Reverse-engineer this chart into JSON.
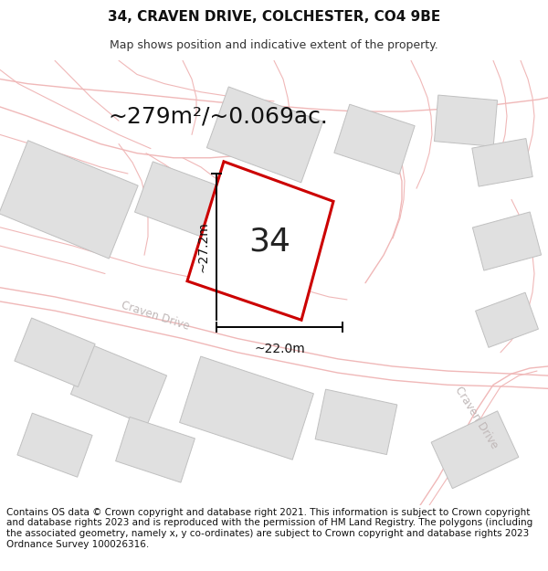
{
  "title": "34, CRAVEN DRIVE, COLCHESTER, CO4 9BE",
  "subtitle": "Map shows position and indicative extent of the property.",
  "area_text": "~279m²/~0.069ac.",
  "number_label": "34",
  "dim_width": "~22.0m",
  "dim_height": "~27.2m",
  "footer_text": "Contains OS data © Crown copyright and database right 2021. This information is subject to Crown copyright and database rights 2023 and is reproduced with the permission of HM Land Registry. The polygons (including the associated geometry, namely x, y co-ordinates) are subject to Crown copyright and database rights 2023 Ordnance Survey 100026316.",
  "map_bg": "#fafafa",
  "road_color": "#f0b8b8",
  "building_color": "#e0e0e0",
  "building_edge": "#c0c0c0",
  "highlight_color": "#cc0000",
  "road_label_color": "#c0b8b8",
  "title_fontsize": 11,
  "subtitle_fontsize": 9,
  "area_fontsize": 18,
  "number_fontsize": 26,
  "dim_fontsize": 10,
  "footer_fontsize": 7.5
}
